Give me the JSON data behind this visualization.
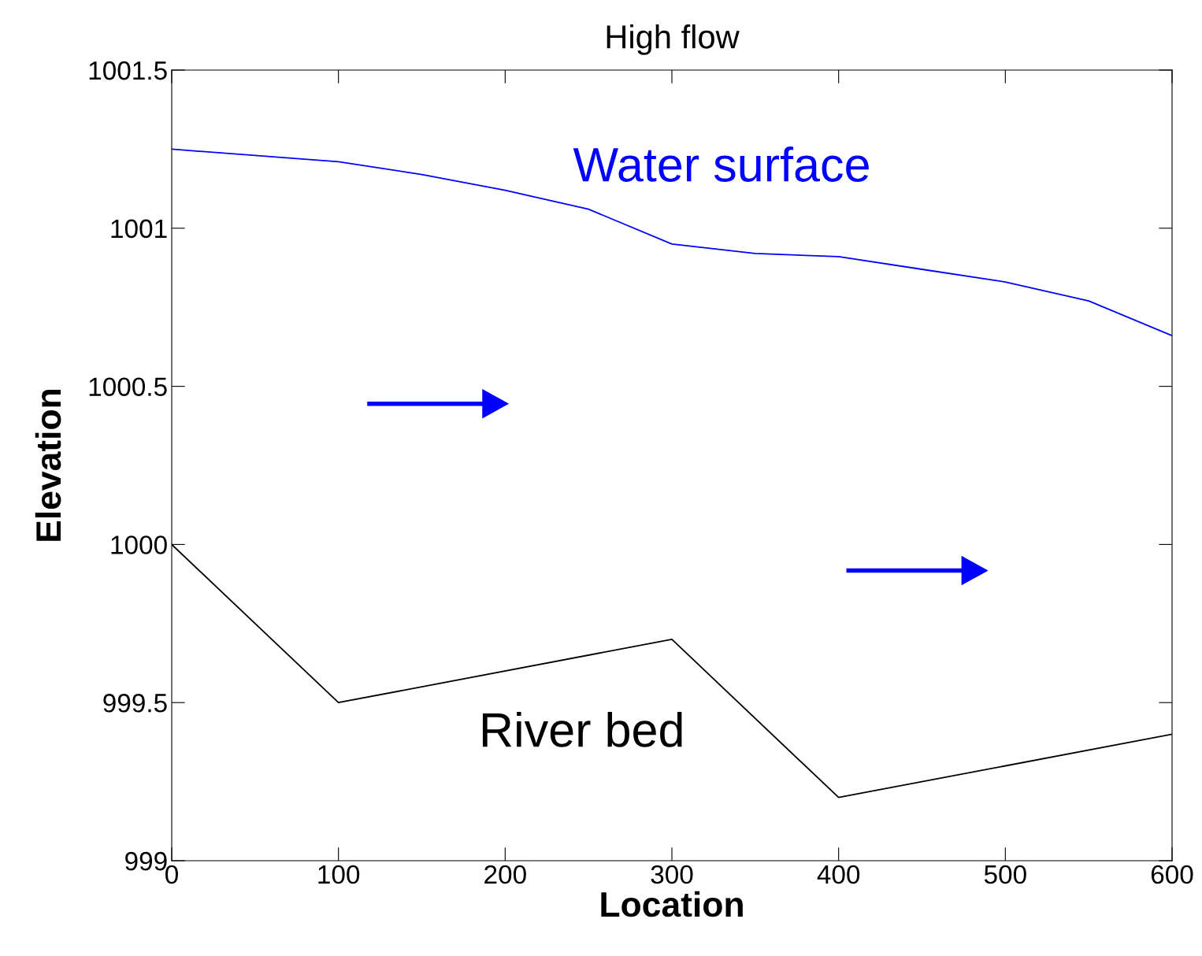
{
  "chart_data": {
    "type": "line",
    "title": "High flow",
    "xlabel": "Location",
    "ylabel": "Elevation",
    "xlim": [
      0,
      600
    ],
    "xticks": [
      0,
      100,
      200,
      300,
      400,
      500,
      600
    ],
    "ylim": [
      999,
      1001.5
    ],
    "yticks": [
      999,
      999.5,
      1000,
      1000.5,
      1001,
      1001.5
    ],
    "grid": false,
    "legend": false,
    "series": [
      {
        "name": "Water surface",
        "color": "#0000ff",
        "x": [
          0,
          100,
          150,
          200,
          250,
          300,
          350,
          400,
          450,
          500,
          550,
          600
        ],
        "values": [
          1001.25,
          1001.21,
          1001.17,
          1001.12,
          1001.06,
          1000.95,
          1000.92,
          1000.91,
          1000.87,
          1000.83,
          1000.77,
          1000.66
        ]
      },
      {
        "name": "River bed",
        "color": "#000000",
        "x": [
          0,
          100,
          300,
          400,
          600
        ],
        "values": [
          1000,
          999.5,
          999.7,
          999.2,
          999.4
        ]
      }
    ]
  }
}
